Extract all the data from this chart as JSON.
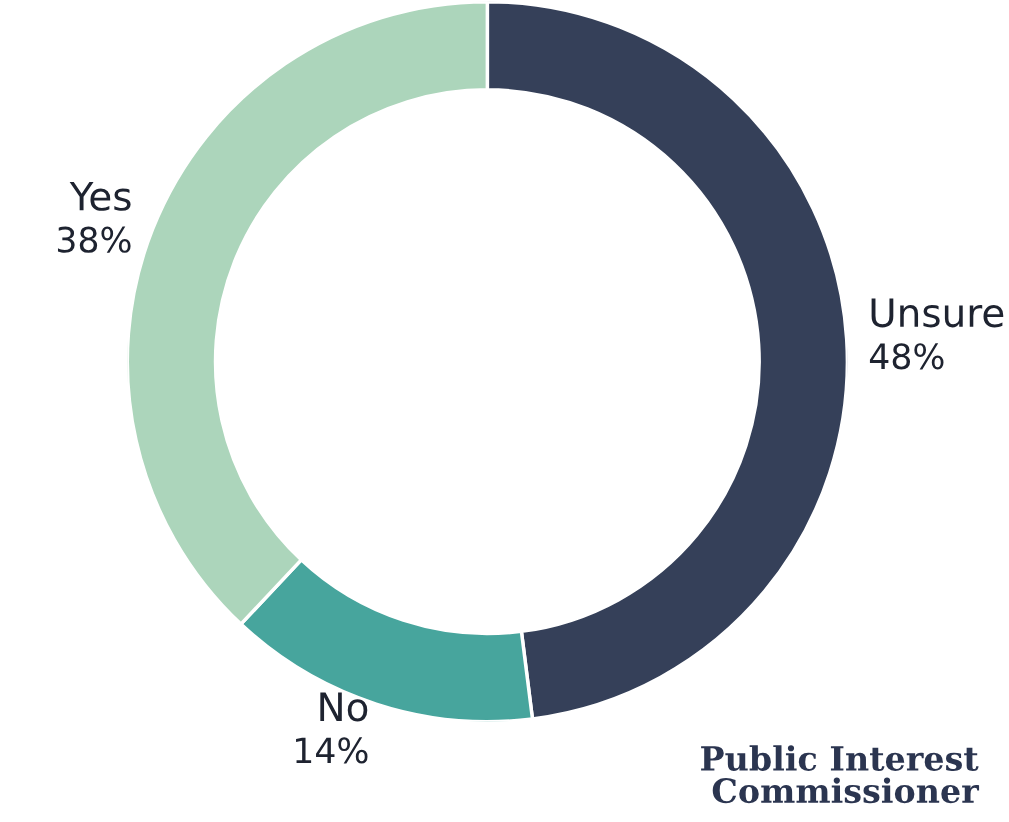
{
  "chart_data": {
    "type": "donut",
    "categories": [
      "Unsure",
      "No",
      "Yes"
    ],
    "values": [
      48,
      14,
      38
    ],
    "colors": [
      "#354059",
      "#47a59d",
      "#acd5bb"
    ],
    "value_labels": [
      "48%",
      "14%",
      "38%"
    ],
    "annotations": [
      "Public Interest\nCommissioner"
    ]
  }
}
